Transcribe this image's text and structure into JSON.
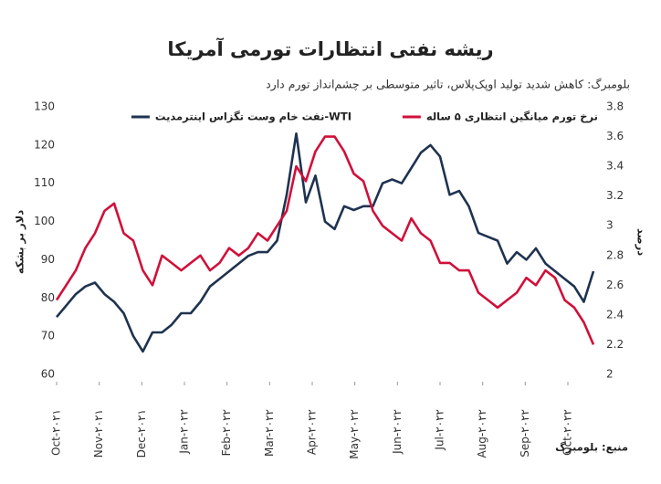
{
  "chart_data": {
    "type": "line",
    "title": "ریشه نفتی انتظارات تورمی آمریکا",
    "subtitle": "بلومبرگ: کاهش شدید تولید اوپک‌پلاس، تاثیر متوسطی بر چشم‌انداز تورم دارد",
    "y_label": "دلار بر بشکه",
    "y2_label": "درصد",
    "source": "منبع: بلومبرگ",
    "xlim": [
      0,
      12.6
    ],
    "xticks": [
      {
        "value": 0,
        "label": "Oct-۲۰۲۱"
      },
      {
        "value": 1,
        "label": "Nov-۲۰۲۱"
      },
      {
        "value": 2,
        "label": "Dec-۲۰۲۱"
      },
      {
        "value": 3,
        "label": "Jan-۲۰۲۲"
      },
      {
        "value": 4,
        "label": "Feb-۲۰۲۲"
      },
      {
        "value": 5,
        "label": "Mar-۲۰۲۲"
      },
      {
        "value": 6,
        "label": "Apr-۲۰۲۲"
      },
      {
        "value": 7,
        "label": "May-۲۰۲۲"
      },
      {
        "value": 8,
        "label": "Jun-۲۰۲۲"
      },
      {
        "value": 9,
        "label": "Jul-۲۰۲۲"
      },
      {
        "value": 10,
        "label": "Aug-۲۰۲۲"
      },
      {
        "value": 11,
        "label": "Sep-۲۰۲۲"
      },
      {
        "value": 12,
        "label": "Oct-۲۰۲۲"
      }
    ],
    "ylim": [
      60,
      130
    ],
    "yticks": [
      60,
      70,
      80,
      90,
      100,
      110,
      120,
      130
    ],
    "y2lim": [
      2,
      3.8
    ],
    "y2ticks": [
      2,
      2.2,
      2.4,
      2.6,
      2.8,
      3,
      3.2,
      3.4,
      3.6,
      3.8
    ],
    "series": [
      {
        "name": "نفت خام وست تگزاس اینترمدیت-WTI",
        "color": "#1f3350",
        "values": [
          75,
          78,
          81,
          83,
          84,
          81,
          79,
          76,
          70,
          66,
          71,
          71,
          73,
          76,
          76,
          79,
          83,
          85,
          87,
          89,
          91,
          92,
          92,
          95,
          107,
          123,
          105,
          112,
          100,
          98,
          104,
          103,
          104,
          104,
          110,
          111,
          110,
          114,
          118,
          120,
          117,
          107,
          108,
          104,
          97,
          96,
          95,
          89,
          92,
          90,
          93,
          89,
          87,
          85,
          83,
          79,
          87
        ]
      },
      {
        "name": "نرخ تورم میانگین انتظاری ۵ ساله",
        "color": "#d0103a",
        "axis": "y2",
        "values": [
          2.5,
          2.6,
          2.7,
          2.85,
          2.95,
          3.1,
          3.15,
          2.95,
          2.9,
          2.7,
          2.6,
          2.8,
          2.75,
          2.7,
          2.75,
          2.8,
          2.7,
          2.75,
          2.85,
          2.8,
          2.85,
          2.95,
          2.9,
          3,
          3.1,
          3.4,
          3.3,
          3.5,
          3.6,
          3.6,
          3.5,
          3.35,
          3.3,
          3.1,
          3,
          2.95,
          2.9,
          3.05,
          2.95,
          2.9,
          2.75,
          2.75,
          2.7,
          2.7,
          2.55,
          2.5,
          2.45,
          2.5,
          2.55,
          2.65,
          2.6,
          2.7,
          2.65,
          2.5,
          2.45,
          2.35,
          2.2
        ]
      }
    ]
  }
}
